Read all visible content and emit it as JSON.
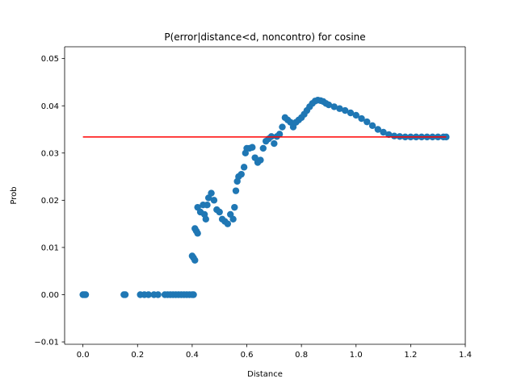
{
  "chart_data": {
    "type": "scatter",
    "title": "P(error|distance<d, noncontro) for cosine",
    "xlabel": "Distance",
    "ylabel": "Prob",
    "xlim": [
      -0.067,
      1.4
    ],
    "ylim": [
      -0.0105,
      0.0525
    ],
    "xticks": [
      0.0,
      0.2,
      0.4,
      0.6,
      0.8,
      1.0,
      1.2,
      1.4
    ],
    "xtick_labels": [
      "0.0",
      "0.2",
      "0.4",
      "0.6",
      "0.8",
      "1.0",
      "1.2",
      "1.4"
    ],
    "yticks": [
      -0.01,
      0.0,
      0.01,
      0.02,
      0.03,
      0.04,
      0.05
    ],
    "ytick_labels": [
      "−0.01",
      "0.00",
      "0.01",
      "0.02",
      "0.03",
      "0.04",
      "0.05"
    ],
    "grid": false,
    "series": [
      {
        "kind": "scatter",
        "color": "#1f77b4",
        "points": [
          [
            0.0,
            0.0
          ],
          [
            0.005,
            0.0
          ],
          [
            0.01,
            0.0
          ],
          [
            0.15,
            0.0
          ],
          [
            0.155,
            0.0
          ],
          [
            0.21,
            0.0
          ],
          [
            0.225,
            0.0
          ],
          [
            0.24,
            0.0
          ],
          [
            0.26,
            0.0
          ],
          [
            0.275,
            0.0
          ],
          [
            0.3,
            0.0
          ],
          [
            0.31,
            0.0
          ],
          [
            0.32,
            0.0
          ],
          [
            0.33,
            0.0
          ],
          [
            0.34,
            0.0
          ],
          [
            0.35,
            0.0
          ],
          [
            0.36,
            0.0
          ],
          [
            0.37,
            0.0
          ],
          [
            0.38,
            0.0
          ],
          [
            0.39,
            0.0
          ],
          [
            0.4,
            0.0
          ],
          [
            0.405,
            0.0
          ],
          [
            0.4,
            0.0082
          ],
          [
            0.405,
            0.0078
          ],
          [
            0.41,
            0.0073
          ],
          [
            0.41,
            0.014
          ],
          [
            0.415,
            0.0135
          ],
          [
            0.42,
            0.013
          ],
          [
            0.42,
            0.0185
          ],
          [
            0.43,
            0.0175
          ],
          [
            0.44,
            0.019
          ],
          [
            0.445,
            0.017
          ],
          [
            0.45,
            0.016
          ],
          [
            0.455,
            0.019
          ],
          [
            0.46,
            0.0205
          ],
          [
            0.47,
            0.0215
          ],
          [
            0.48,
            0.02
          ],
          [
            0.49,
            0.018
          ],
          [
            0.5,
            0.0175
          ],
          [
            0.51,
            0.016
          ],
          [
            0.52,
            0.0155
          ],
          [
            0.53,
            0.015
          ],
          [
            0.54,
            0.017
          ],
          [
            0.55,
            0.016
          ],
          [
            0.555,
            0.0185
          ],
          [
            0.56,
            0.022
          ],
          [
            0.565,
            0.024
          ],
          [
            0.57,
            0.025
          ],
          [
            0.58,
            0.0255
          ],
          [
            0.59,
            0.027
          ],
          [
            0.595,
            0.03
          ],
          [
            0.6,
            0.031
          ],
          [
            0.61,
            0.031
          ],
          [
            0.62,
            0.0312
          ],
          [
            0.63,
            0.029
          ],
          [
            0.64,
            0.028
          ],
          [
            0.65,
            0.0285
          ],
          [
            0.66,
            0.031
          ],
          [
            0.67,
            0.0325
          ],
          [
            0.68,
            0.033
          ],
          [
            0.69,
            0.0335
          ],
          [
            0.7,
            0.032
          ],
          [
            0.71,
            0.0335
          ],
          [
            0.72,
            0.034
          ],
          [
            0.73,
            0.0355
          ],
          [
            0.74,
            0.0375
          ],
          [
            0.75,
            0.037
          ],
          [
            0.76,
            0.0365
          ],
          [
            0.77,
            0.0355
          ],
          [
            0.78,
            0.0365
          ],
          [
            0.79,
            0.037
          ],
          [
            0.8,
            0.0375
          ],
          [
            0.81,
            0.0382
          ],
          [
            0.82,
            0.039
          ],
          [
            0.83,
            0.0398
          ],
          [
            0.84,
            0.0405
          ],
          [
            0.85,
            0.041
          ],
          [
            0.86,
            0.0412
          ],
          [
            0.87,
            0.0411
          ],
          [
            0.88,
            0.0409
          ],
          [
            0.89,
            0.0405
          ],
          [
            0.9,
            0.0402
          ],
          [
            0.92,
            0.0398
          ],
          [
            0.94,
            0.0394
          ],
          [
            0.96,
            0.039
          ],
          [
            0.98,
            0.0385
          ],
          [
            1.0,
            0.038
          ],
          [
            1.02,
            0.0373
          ],
          [
            1.04,
            0.0366
          ],
          [
            1.06,
            0.0358
          ],
          [
            1.08,
            0.035
          ],
          [
            1.1,
            0.0344
          ],
          [
            1.12,
            0.0339
          ],
          [
            1.14,
            0.0336
          ],
          [
            1.16,
            0.0335
          ],
          [
            1.18,
            0.0334
          ],
          [
            1.2,
            0.0334
          ],
          [
            1.22,
            0.0334
          ],
          [
            1.24,
            0.0334
          ],
          [
            1.26,
            0.0334
          ],
          [
            1.28,
            0.0334
          ],
          [
            1.3,
            0.0334
          ],
          [
            1.32,
            0.0334
          ],
          [
            1.33,
            0.0334
          ]
        ]
      },
      {
        "kind": "line",
        "color": "#ff0000",
        "points": [
          [
            0.0,
            0.0334
          ],
          [
            1.33,
            0.0334
          ]
        ]
      }
    ]
  }
}
